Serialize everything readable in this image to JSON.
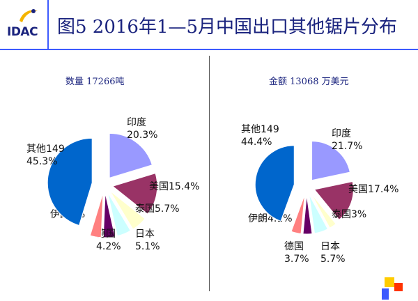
{
  "header": {
    "logo_text": "IDAC",
    "title": "图5  2016年1—5月中国出口其他锯片分布"
  },
  "chart_data": [
    {
      "type": "pie",
      "title": "数量 17266吨",
      "slices": [
        {
          "name": "印度",
          "value": 20.3,
          "label": "20.3%",
          "color": "#9999ff"
        },
        {
          "name": "美国",
          "value": 15.4,
          "label": "15.4%",
          "color": "#993366"
        },
        {
          "name": "泰国",
          "value": 5.7,
          "label": "5.7%",
          "color": "#ffffcc"
        },
        {
          "name": "日本",
          "value": 5.1,
          "label": "5.1%",
          "color": "#ccffff"
        },
        {
          "name": "德国",
          "value": 4.2,
          "label": "4.2%",
          "color": "#660066"
        },
        {
          "name": "伊朗",
          "value": 4,
          "label": "4%",
          "color": "#ff8080"
        },
        {
          "name": "其他149",
          "value": 45.3,
          "label": "45.3%",
          "color": "#0066cc"
        }
      ]
    },
    {
      "type": "pie",
      "title": "金额 13068 万美元",
      "slices": [
        {
          "name": "印度",
          "value": 21.7,
          "label": "21.7%",
          "color": "#9999ff"
        },
        {
          "name": "美国",
          "value": 17.4,
          "label": "17.4%",
          "color": "#993366"
        },
        {
          "name": "泰国",
          "value": 3,
          "label": "3%",
          "color": "#ffffcc"
        },
        {
          "name": "日本",
          "value": 5.7,
          "label": "5.7%",
          "color": "#ccffff"
        },
        {
          "name": "德国",
          "value": 3.7,
          "label": "3.7%",
          "color": "#660066"
        },
        {
          "name": "伊朗",
          "value": 4.1,
          "label": "4.1%",
          "color": "#ff8080"
        },
        {
          "name": "其他149",
          "value": 44.4,
          "label": "44.4%",
          "color": "#0066cc"
        }
      ]
    }
  ]
}
